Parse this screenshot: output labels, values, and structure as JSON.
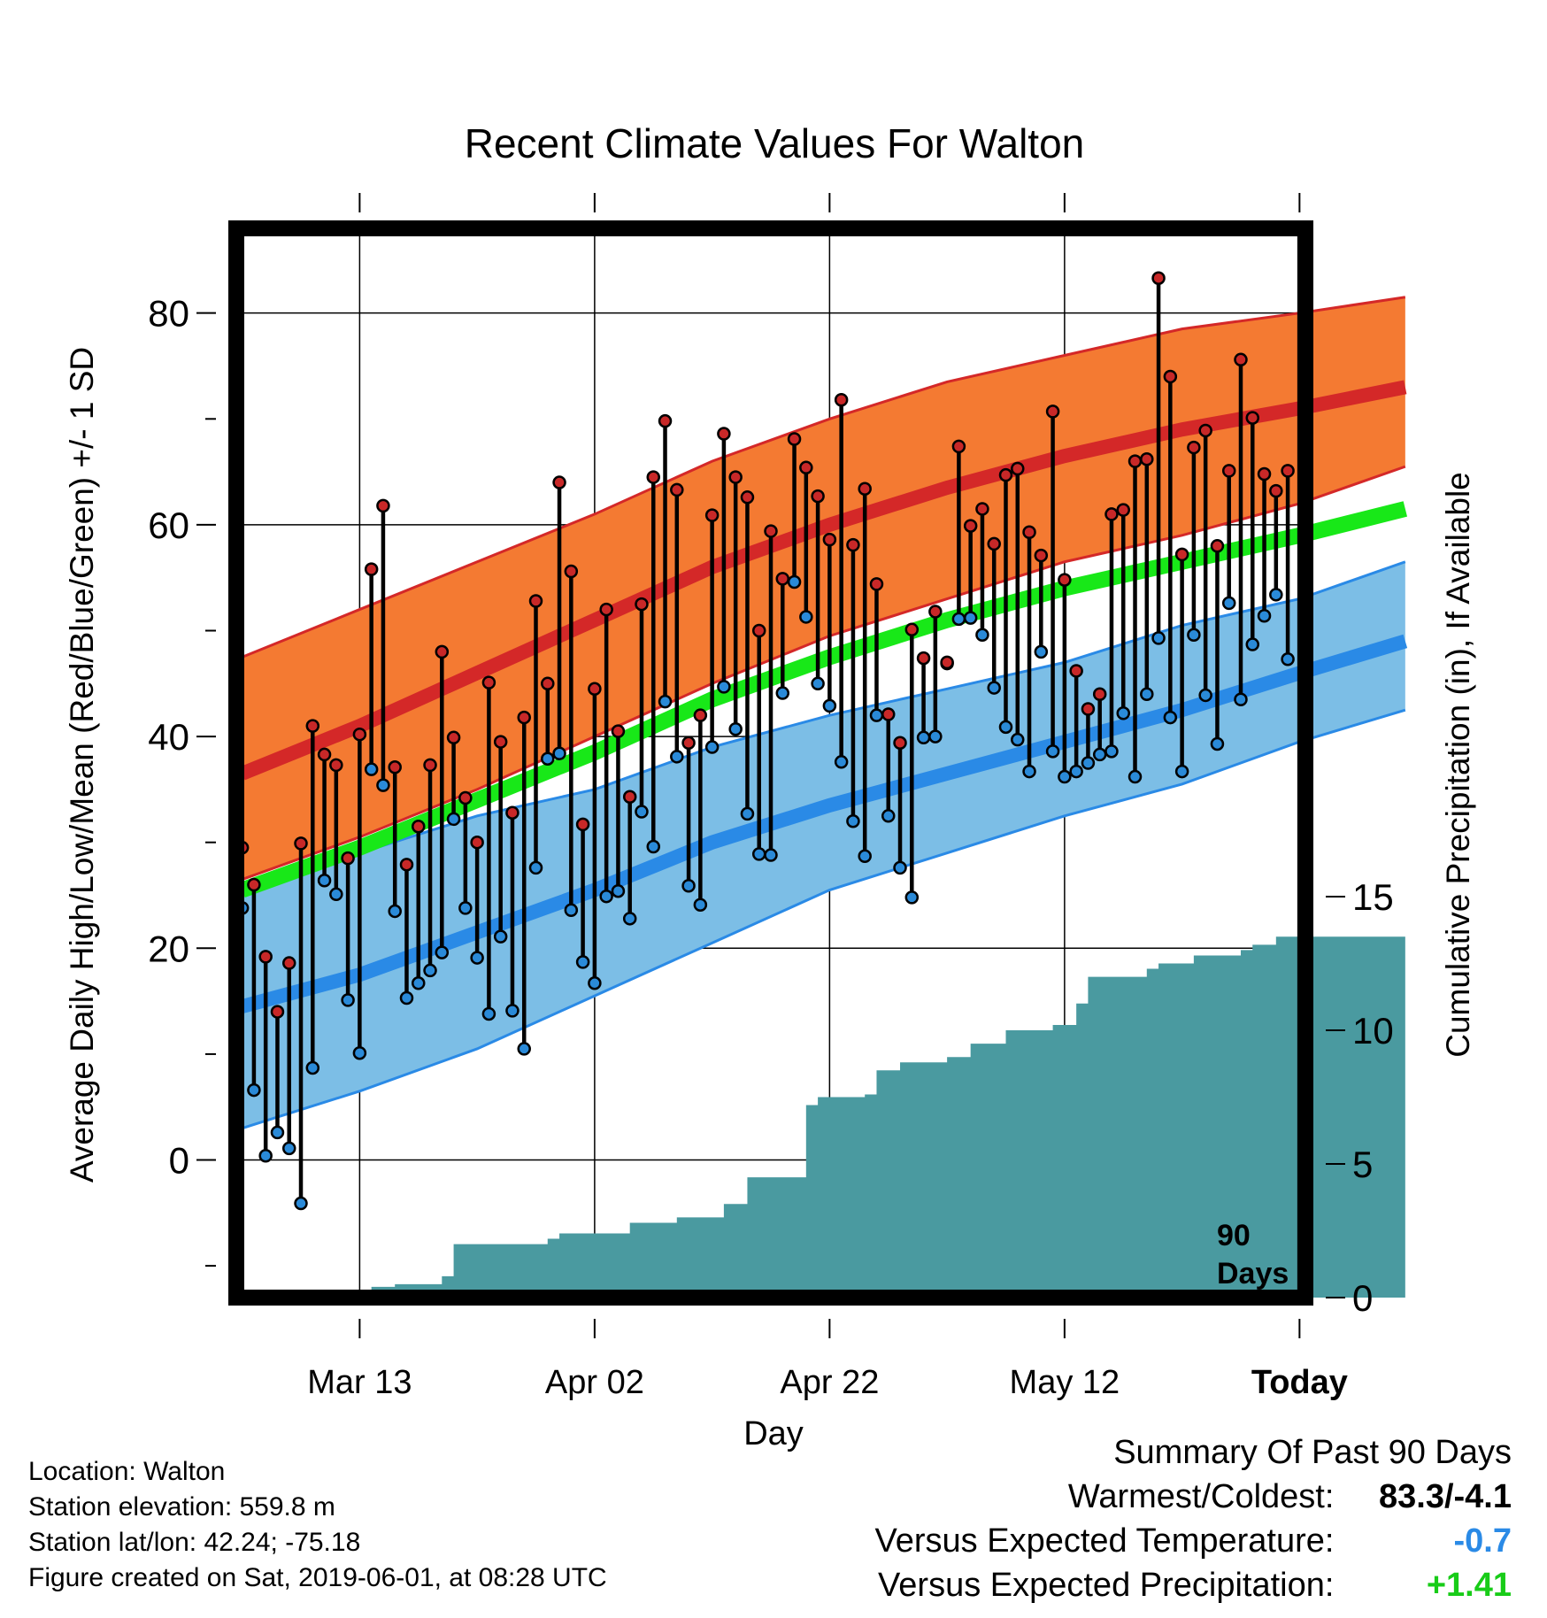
{
  "chart_data": {
    "type": "line",
    "title": "Recent Climate Values For Walton",
    "xlabel": "Day",
    "ylabel": "Average Daily High/Low/Mean (Red/Blue/Green) +/- 1 SD",
    "y2label": "Cumulative Precipitation (in), If Available",
    "ylim": [
      -13,
      88
    ],
    "y2lim": [
      0,
      40
    ],
    "x_tick_labels": [
      "Mar 13",
      "Apr 02",
      "Apr 22",
      "May 12",
      "Today"
    ],
    "x_tick_days": [
      10,
      30,
      50,
      70,
      90
    ],
    "y_ticks": [
      0,
      20,
      40,
      60,
      80
    ],
    "y2_ticks": [
      0,
      5,
      10,
      15
    ],
    "xlim": [
      -0.5,
      90.5
    ],
    "grid": true,
    "today_marker": {
      "day": 90,
      "label_line1": "90",
      "label_line2": "Days"
    },
    "colors": {
      "high_band": "#f47a32",
      "high_mean": "#d42828",
      "high_edge": "#d42828",
      "low_band": "#7cbee6",
      "low_mean": "#2a8ae6",
      "low_edge": "#2a8ae6",
      "mean_line": "#18e818",
      "precip": "#4a9aa0",
      "high_point": "#c82828",
      "low_point": "#2a8ad8",
      "summary_temp": "#2a8ae6",
      "summary_precip": "#18cc18"
    },
    "normals": {
      "days": [
        0,
        10,
        20,
        30,
        40,
        50,
        60,
        70,
        80,
        90,
        99
      ],
      "high_mean": [
        36.5,
        41.0,
        46.0,
        51.0,
        56.0,
        60.0,
        63.5,
        66.5,
        69.0,
        71.0,
        73.0
      ],
      "high_upper": [
        47.5,
        52.0,
        56.5,
        61.0,
        66.0,
        70.0,
        73.5,
        76.0,
        78.5,
        80.0,
        81.5
      ],
      "high_lower": [
        26.5,
        30.5,
        35.0,
        40.0,
        45.0,
        49.5,
        53.0,
        56.5,
        59.0,
        62.0,
        65.5
      ],
      "avg_mean": [
        25.5,
        29.5,
        34.0,
        38.5,
        43.5,
        47.5,
        51.0,
        54.0,
        56.5,
        59.0,
        61.5
      ],
      "low_mean": [
        14.5,
        17.5,
        21.5,
        25.5,
        30.0,
        33.5,
        36.5,
        39.5,
        42.5,
        46.0,
        49.0
      ],
      "low_upper": [
        25.0,
        29.0,
        32.5,
        35.0,
        39.0,
        42.0,
        44.5,
        47.0,
        50.5,
        53.0,
        56.5
      ],
      "low_lower": [
        3.0,
        6.5,
        10.5,
        15.5,
        20.5,
        25.5,
        29.0,
        32.5,
        35.5,
        39.5,
        42.5
      ]
    },
    "series": [
      {
        "name": "High",
        "x": [
          0,
          1,
          2,
          3,
          4,
          5,
          6,
          7,
          8,
          9,
          10,
          11,
          12,
          13,
          14,
          15,
          16,
          17,
          18,
          19,
          20,
          21,
          22,
          23,
          24,
          25,
          26,
          27,
          28,
          29,
          30,
          31,
          32,
          33,
          34,
          35,
          36,
          37,
          38,
          39,
          40,
          41,
          42,
          43,
          44,
          45,
          46,
          47,
          48,
          49,
          50,
          51,
          52,
          53,
          54,
          55,
          56,
          57,
          58,
          59,
          60,
          61,
          62,
          63,
          64,
          65,
          66,
          67,
          68,
          69,
          70,
          71,
          72,
          73,
          74,
          75,
          76,
          77,
          78,
          79,
          80,
          81,
          82,
          83,
          84,
          85,
          86,
          87,
          88,
          89
        ],
        "y": [
          29.5,
          26.0,
          19.2,
          14.0,
          18.6,
          29.9,
          41.0,
          38.3,
          37.3,
          28.5,
          40.2,
          55.8,
          61.8,
          37.1,
          27.9,
          31.5,
          37.3,
          48.0,
          39.9,
          34.2,
          30.0,
          45.1,
          39.5,
          32.8,
          41.8,
          52.8,
          45.0,
          64.0,
          55.6,
          31.7,
          44.5,
          52.0,
          40.5,
          34.3,
          52.5,
          64.5,
          69.8,
          63.3,
          39.4,
          42.0,
          60.9,
          68.6,
          64.5,
          62.6,
          50.0,
          59.4,
          54.9,
          68.1,
          65.4,
          62.7,
          58.6,
          71.8,
          58.1,
          63.4,
          54.4,
          42.1,
          39.4,
          50.1,
          47.4,
          51.8,
          47.0,
          67.4,
          59.9,
          61.5,
          58.2,
          64.7,
          65.3,
          59.3,
          57.1,
          70.7,
          54.8,
          46.2,
          42.6,
          44.0,
          61.0,
          61.4,
          66.0,
          66.2,
          83.3,
          74.0,
          57.2,
          67.3,
          68.9,
          58.0,
          65.1,
          75.6,
          70.1,
          64.8,
          63.2,
          65.1
        ]
      },
      {
        "name": "Low",
        "x": [
          0,
          1,
          2,
          3,
          4,
          5,
          6,
          7,
          8,
          9,
          10,
          11,
          12,
          13,
          14,
          15,
          16,
          17,
          18,
          19,
          20,
          21,
          22,
          23,
          24,
          25,
          26,
          27,
          28,
          29,
          30,
          31,
          32,
          33,
          34,
          35,
          36,
          37,
          38,
          39,
          40,
          41,
          42,
          43,
          44,
          45,
          46,
          47,
          48,
          49,
          50,
          51,
          52,
          53,
          54,
          55,
          56,
          57,
          58,
          59,
          60,
          61,
          62,
          63,
          64,
          65,
          66,
          67,
          68,
          69,
          70,
          71,
          72,
          73,
          74,
          75,
          76,
          77,
          78,
          79,
          80,
          81,
          82,
          83,
          84,
          85,
          86,
          87,
          88,
          89
        ],
        "y": [
          23.8,
          6.6,
          0.4,
          2.6,
          1.1,
          -4.1,
          8.7,
          26.4,
          25.1,
          15.1,
          10.1,
          36.9,
          35.4,
          23.5,
          15.3,
          16.7,
          17.9,
          19.6,
          32.2,
          23.8,
          19.1,
          13.8,
          21.1,
          14.1,
          10.5,
          27.6,
          37.9,
          38.4,
          23.6,
          18.7,
          16.7,
          24.9,
          25.4,
          22.8,
          32.9,
          29.6,
          43.3,
          38.1,
          25.9,
          24.1,
          39.0,
          44.7,
          40.7,
          32.7,
          28.9,
          28.8,
          44.1,
          54.6,
          51.3,
          45.0,
          42.9,
          37.6,
          32.0,
          28.7,
          42.0,
          32.5,
          27.6,
          24.8,
          39.9,
          40.0,
          46.9,
          51.1,
          51.2,
          49.6,
          44.6,
          40.9,
          39.7,
          36.7,
          48.0,
          38.6,
          36.2,
          36.7,
          37.5,
          38.3,
          38.6,
          42.2,
          36.2,
          44.0,
          49.3,
          41.8,
          36.7,
          49.6,
          43.9,
          39.3,
          52.6,
          43.5,
          48.7,
          51.4,
          53.4,
          47.3
        ]
      },
      {
        "name": "Precipitation",
        "x": [
          0,
          6,
          7,
          11,
          13,
          16,
          17,
          18,
          19,
          20,
          26,
          27,
          29,
          32,
          33,
          35,
          37,
          39,
          40,
          41,
          42,
          43,
          46,
          47,
          48,
          49,
          50,
          53,
          54,
          55,
          56,
          57,
          60,
          61,
          62,
          63,
          65,
          67,
          69,
          70,
          71,
          72,
          74,
          77,
          78,
          79,
          81,
          84,
          85,
          86,
          87,
          88,
          90,
          99
        ],
        "y": [
          0,
          0,
          0.2,
          0.4,
          0.5,
          0.5,
          0.8,
          2.0,
          2.0,
          2.0,
          2.2,
          2.4,
          2.4,
          2.4,
          2.8,
          2.8,
          3.0,
          3.0,
          3.0,
          3.5,
          3.5,
          4.5,
          4.5,
          4.5,
          7.2,
          7.5,
          7.5,
          7.6,
          8.5,
          8.5,
          8.8,
          8.8,
          9.0,
          9.0,
          9.5,
          9.5,
          10.0,
          10.0,
          10.2,
          10.2,
          11.0,
          12.0,
          12.0,
          12.3,
          12.5,
          12.5,
          12.8,
          12.8,
          13.0,
          13.2,
          13.2,
          13.5,
          13.5,
          13.5
        ]
      }
    ]
  },
  "info": {
    "location": "Location: Walton",
    "elevation": "Station elevation: 559.8 m",
    "latlon": "Station lat/lon: 42.24; -75.18",
    "created": "Figure created on Sat, 2019-06-01, at 08:28 UTC"
  },
  "summary": {
    "heading": "Summary Of Past 90 Days",
    "warm_label": "Warmest/Coldest:",
    "warm_value": "83.3/-4.1",
    "temp_label": "Versus Expected Temperature:",
    "temp_value": "-0.7",
    "precip_label": "Versus Expected Precipitation:",
    "precip_value": "+1.41"
  }
}
